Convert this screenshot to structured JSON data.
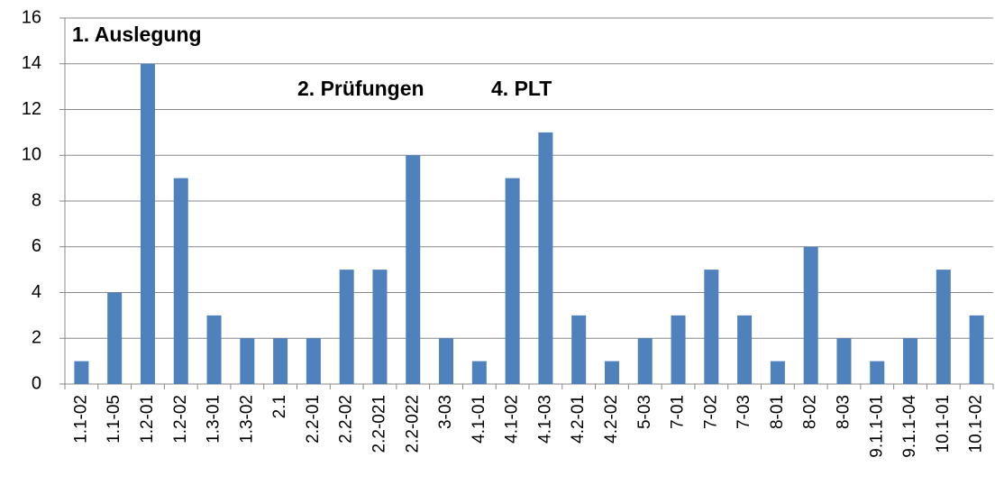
{
  "chart_data": {
    "type": "bar",
    "annotations": [
      "1. Auslegung",
      "2. Prüfungen",
      "4. PLT"
    ],
    "categories": [
      "1.1-02",
      "1.1-05",
      "1.2-01",
      "1.2-02",
      "1.3-01",
      "1.3-02",
      "2.1",
      "2.2-01",
      "2.2-02",
      "2.2-021",
      "2.2-022",
      "3-03",
      "4.1-01",
      "4.1-02",
      "4.1-03",
      "4.2-01",
      "4.2-02",
      "5-03",
      "7-01",
      "7-02",
      "7-03",
      "8-01",
      "8-02",
      "8-03",
      "9.1.1-01",
      "9.1.1-04",
      "10.1-01",
      "10.1-02"
    ],
    "values": [
      1,
      4,
      14,
      9,
      3,
      2,
      2,
      2,
      5,
      5,
      10,
      2,
      1,
      9,
      11,
      3,
      1,
      2,
      3,
      5,
      3,
      1,
      6,
      2,
      1,
      2,
      5,
      3
    ],
    "color": "#4f81bd",
    "ylim": [
      0,
      16
    ],
    "yticks": [
      0,
      2,
      4,
      6,
      8,
      10,
      12,
      14,
      16
    ],
    "grid": true
  }
}
